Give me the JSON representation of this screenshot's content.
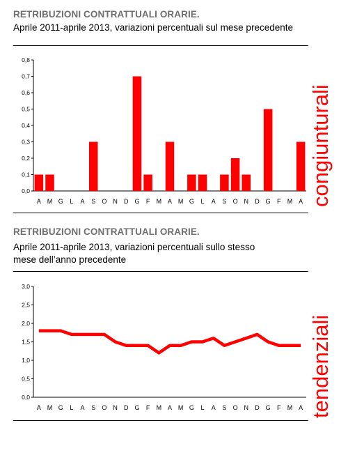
{
  "sections": [
    {
      "title": "RETRIBUZIONI CONTRATTUALI ORARIE.",
      "subtitle_lines": [
        "Aprile 2011-aprile 2013, variazioni percentuali sul mese precedente"
      ],
      "side_label": "congiunturali"
    },
    {
      "title": "RETRIBUZIONI CONTRATTUALI ORARIE.",
      "subtitle_lines": [
        "Aprile 2011-aprile 2013, variazioni percentuali sullo stesso",
        "mese dell’anno precedente"
      ],
      "side_label": "tendenziali"
    }
  ],
  "chart_data": [
    {
      "type": "bar",
      "categories": [
        "A",
        "M",
        "G",
        "L",
        "A",
        "S",
        "O",
        "N",
        "D",
        "G",
        "F",
        "M",
        "A",
        "M",
        "G",
        "L",
        "A",
        "S",
        "O",
        "N",
        "D",
        "G",
        "F",
        "M",
        "A"
      ],
      "values": [
        0.1,
        0.1,
        0,
        0,
        0,
        0.3,
        0,
        0,
        0,
        0.7,
        0.1,
        0,
        0.3,
        0,
        0.1,
        0.1,
        0,
        0.1,
        0.2,
        0.1,
        0,
        0.5,
        0,
        0,
        0.3
      ],
      "ylim": [
        0,
        0.8
      ],
      "yticks": [
        "0,0",
        "0,1",
        "0,2",
        "0,3",
        "0,4",
        "0,5",
        "0,6",
        "0,7",
        "0,8"
      ],
      "ytick_values": [
        0,
        0.1,
        0.2,
        0.3,
        0.4,
        0.5,
        0.6,
        0.7,
        0.8
      ],
      "color": "#ff0000",
      "grid": false
    },
    {
      "type": "line",
      "categories": [
        "A",
        "M",
        "G",
        "L",
        "A",
        "S",
        "O",
        "N",
        "D",
        "G",
        "F",
        "M",
        "A",
        "M",
        "G",
        "L",
        "A",
        "S",
        "O",
        "N",
        "D",
        "G",
        "F",
        "M",
        "A"
      ],
      "values": [
        1.8,
        1.8,
        1.8,
        1.7,
        1.7,
        1.7,
        1.7,
        1.5,
        1.4,
        1.4,
        1.4,
        1.2,
        1.4,
        1.4,
        1.5,
        1.5,
        1.6,
        1.4,
        1.5,
        1.6,
        1.7,
        1.5,
        1.4,
        1.4,
        1.4
      ],
      "ylim": [
        0,
        3.0
      ],
      "yticks": [
        "0,0",
        "0,5",
        "1,0",
        "1,5",
        "2,0",
        "2,5",
        "3,0"
      ],
      "ytick_values": [
        0,
        0.5,
        1.0,
        1.5,
        2.0,
        2.5,
        3.0
      ],
      "color": "#ff0000",
      "grid": false
    }
  ]
}
